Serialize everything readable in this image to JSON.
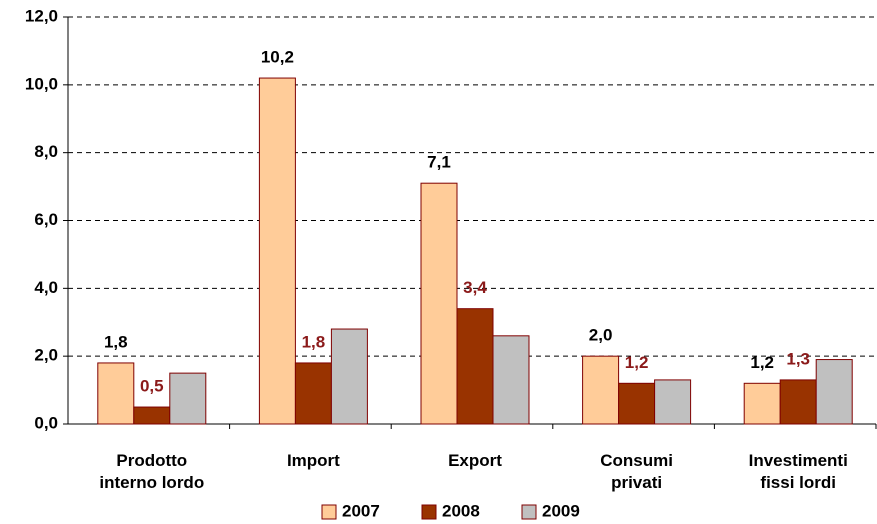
{
  "chart_data": {
    "type": "bar",
    "categories": [
      "Prodotto\ninterno lordo",
      "Import",
      "Export",
      "Consumi\nprivati",
      "Investimenti\nfissi lordi"
    ],
    "series": [
      {
        "name": "2007",
        "color": "#FFCC99",
        "label_color": "#000000",
        "values": [
          1.8,
          10.2,
          7.1,
          2.0,
          1.2
        ],
        "value_labels": [
          "1,8",
          "10,2",
          "7,1",
          "2,0",
          "1,2"
        ]
      },
      {
        "name": "2008",
        "color": "#993300",
        "label_color": "#8B1A1A",
        "values": [
          0.5,
          1.8,
          3.4,
          1.2,
          1.3
        ],
        "value_labels": [
          "0,5",
          "1,8",
          "3,4",
          "1,2",
          "1,3"
        ]
      },
      {
        "name": "2009",
        "color": "#C0C0C0",
        "values": [
          1.5,
          2.8,
          2.6,
          1.3,
          1.9
        ]
      }
    ],
    "ylim": [
      0,
      12
    ],
    "yticks": [
      {
        "value": 0,
        "label": "0,0"
      },
      {
        "value": 2,
        "label": "2,0"
      },
      {
        "value": 4,
        "label": "4,0"
      },
      {
        "value": 6,
        "label": "6,0"
      },
      {
        "value": 8,
        "label": "8,0"
      },
      {
        "value": 10,
        "label": "10,0"
      },
      {
        "value": 12,
        "label": "12,0"
      }
    ],
    "grid": true,
    "legend": "bottom"
  }
}
